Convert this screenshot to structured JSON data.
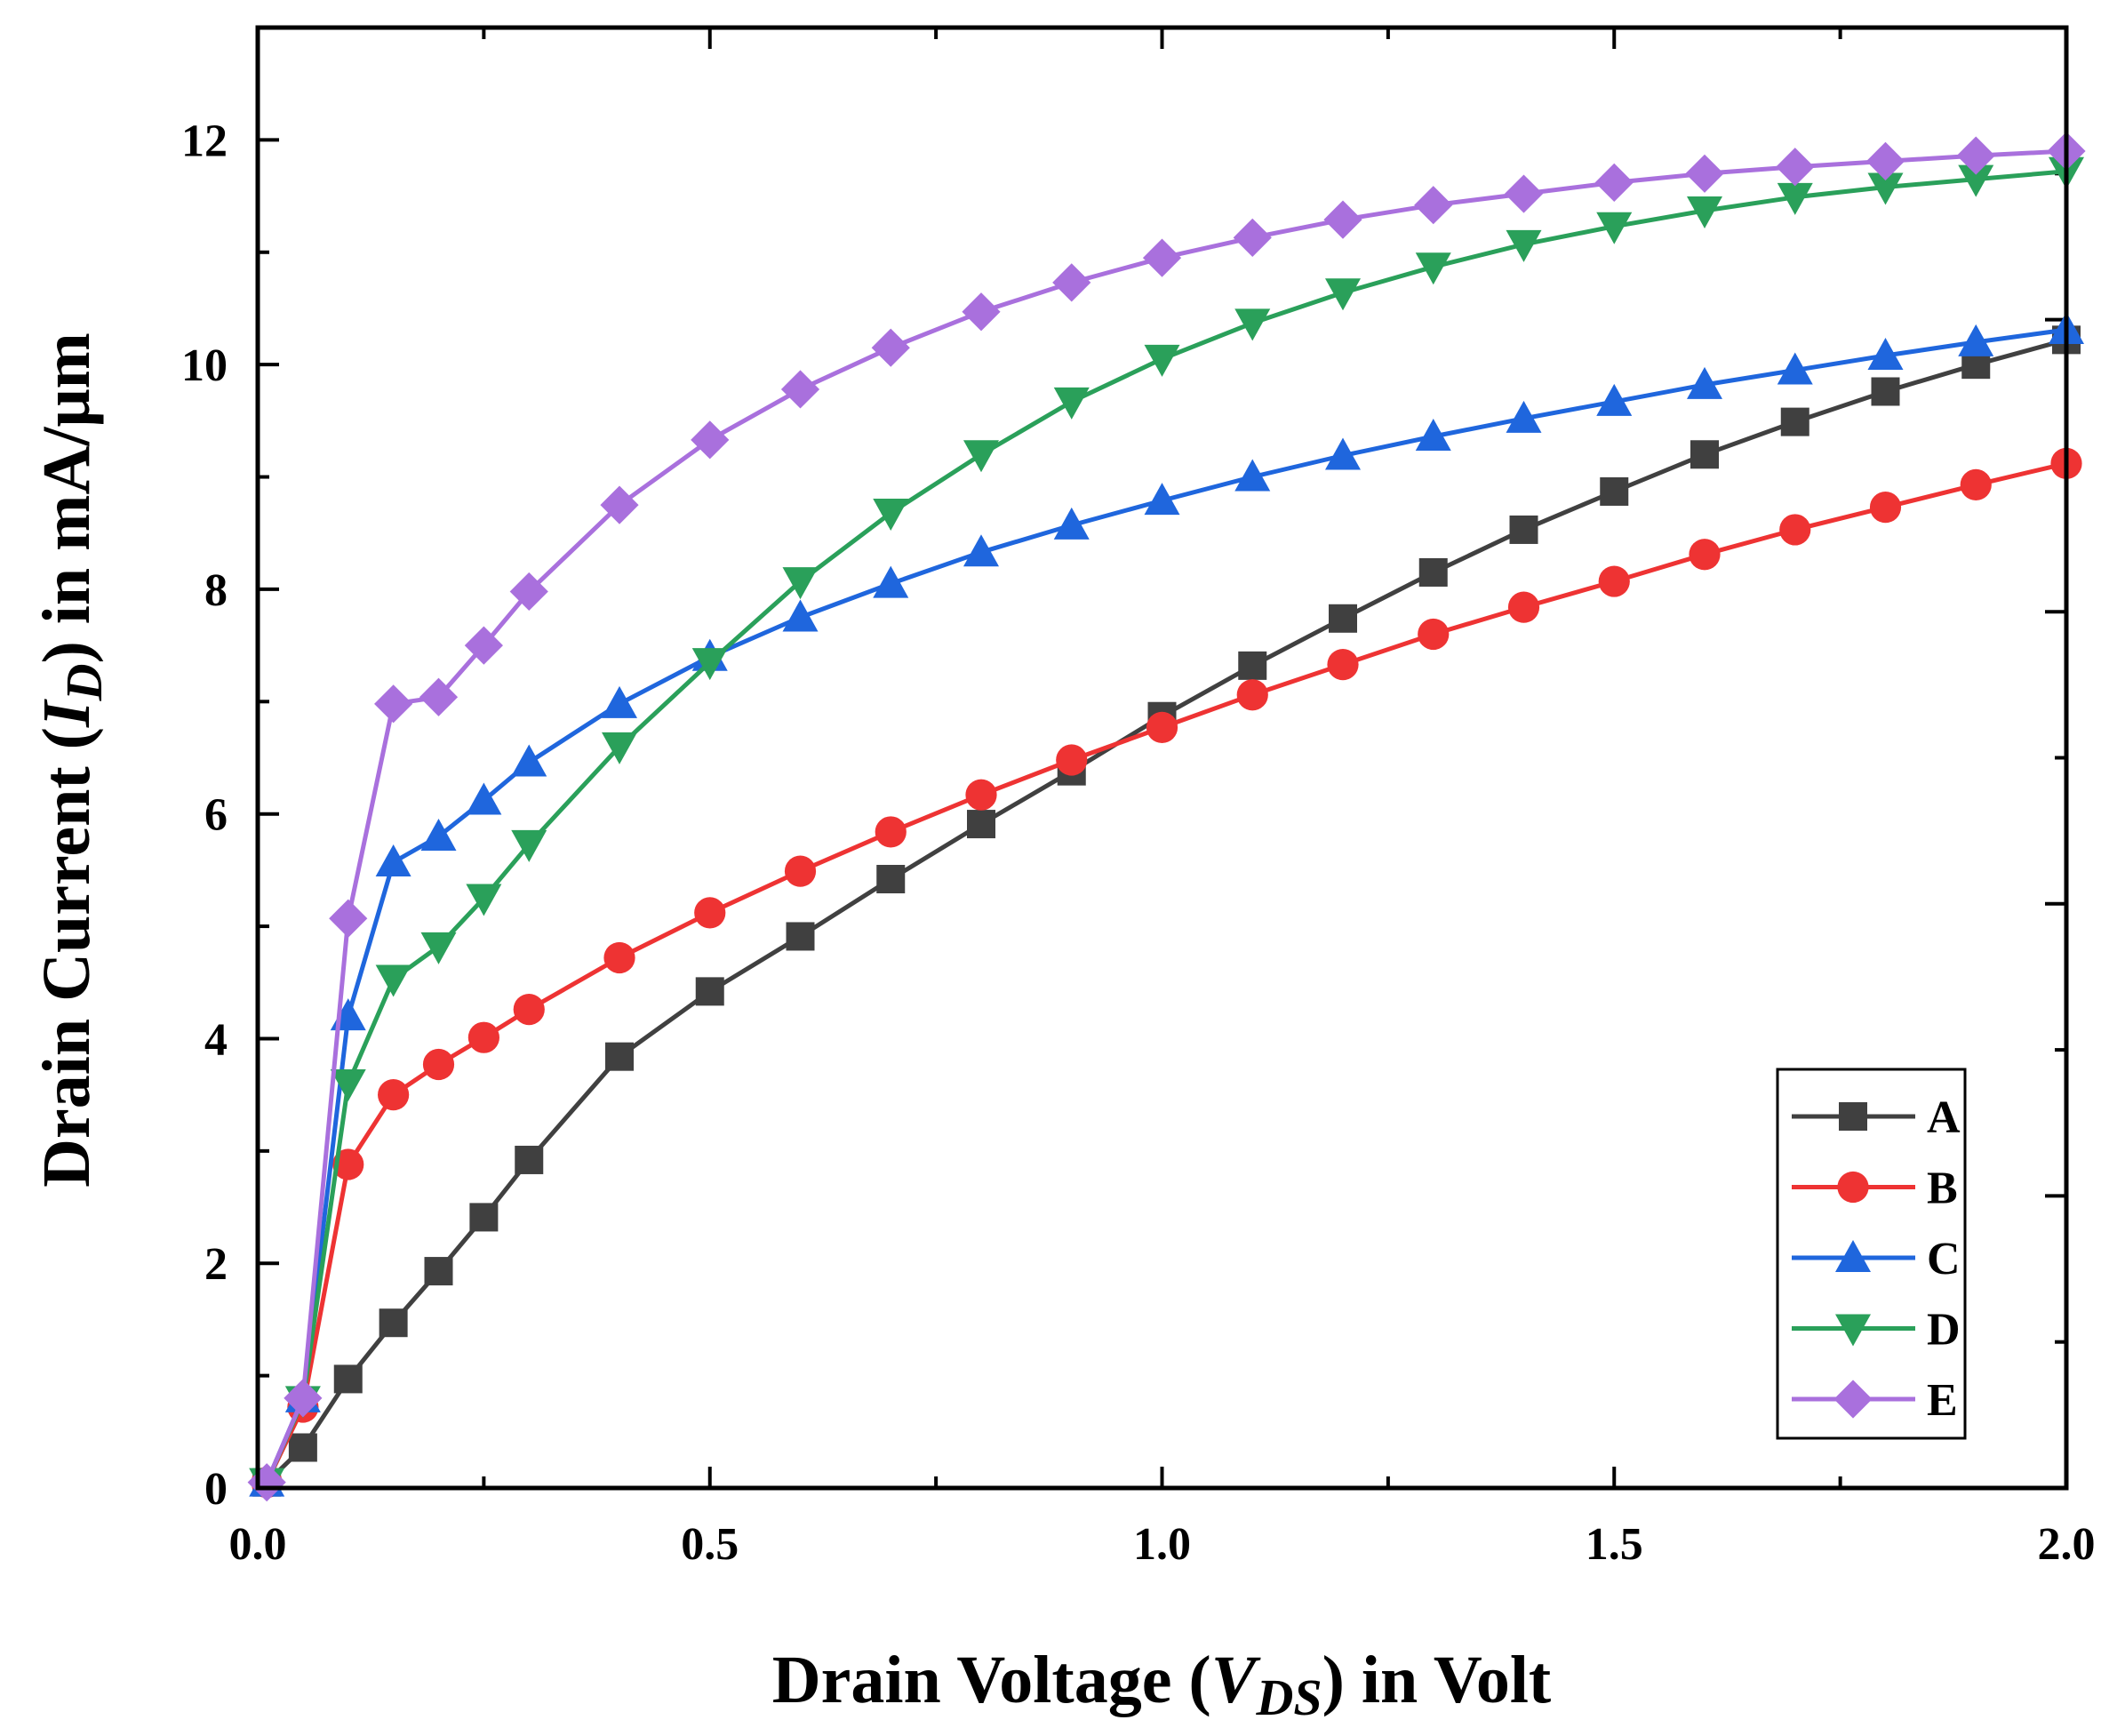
{
  "chart_data": {
    "type": "line",
    "xlabel": {
      "prefix": "Drain Voltage (",
      "var": "V",
      "sub": "DS",
      "suffix": ") in Volt"
    },
    "ylabel": {
      "prefix": "Drain Current (",
      "var": "I",
      "sub": "D",
      "suffix": ") in mA/μm"
    },
    "xlim": [
      0.0,
      2.0
    ],
    "ylim": [
      0,
      13
    ],
    "x_ticks": [
      {
        "value": 0.0,
        "label": "0.0"
      },
      {
        "value": 0.5,
        "label": "0.5"
      },
      {
        "value": 1.0,
        "label": "1.0"
      },
      {
        "value": 1.5,
        "label": "1.5"
      },
      {
        "value": 2.0,
        "label": "2.0"
      }
    ],
    "y_ticks": [
      {
        "value": 0,
        "label": "0"
      },
      {
        "value": 2,
        "label": "2"
      },
      {
        "value": 4,
        "label": "4"
      },
      {
        "value": 6,
        "label": "6"
      },
      {
        "value": 8,
        "label": "8"
      },
      {
        "value": 10,
        "label": "10"
      },
      {
        "value": 12,
        "label": "12"
      }
    ],
    "legend_position": "bottom-right",
    "x": [
      0.01,
      0.05,
      0.1,
      0.15,
      0.2,
      0.25,
      0.3,
      0.4,
      0.5,
      0.6,
      0.7,
      0.8,
      0.9,
      1.0,
      1.1,
      1.2,
      1.3,
      1.4,
      1.5,
      1.6,
      1.7,
      1.8,
      1.9,
      2.0
    ],
    "series": [
      {
        "name": "A",
        "color": "#404040",
        "marker": "square",
        "values": [
          0.05,
          0.36,
          0.97,
          1.47,
          1.93,
          2.41,
          2.92,
          3.84,
          4.42,
          4.91,
          5.42,
          5.91,
          6.38,
          6.87,
          7.32,
          7.74,
          8.15,
          8.53,
          8.87,
          9.2,
          9.49,
          9.76,
          10.0,
          10.22
        ]
      },
      {
        "name": "B",
        "color": "#ee3333",
        "marker": "circle",
        "values": [
          0.05,
          0.72,
          2.88,
          3.5,
          3.77,
          4.01,
          4.26,
          4.72,
          5.12,
          5.49,
          5.84,
          6.17,
          6.48,
          6.77,
          7.06,
          7.33,
          7.6,
          7.84,
          8.07,
          8.31,
          8.53,
          8.73,
          8.93,
          9.12
        ]
      },
      {
        "name": "C",
        "color": "#1f66dd",
        "marker": "triangle-up",
        "values": [
          0.05,
          0.8,
          4.2,
          5.57,
          5.8,
          6.12,
          6.46,
          6.98,
          7.4,
          7.75,
          8.05,
          8.33,
          8.57,
          8.79,
          9.0,
          9.19,
          9.36,
          9.52,
          9.67,
          9.82,
          9.95,
          10.08,
          10.2,
          10.31
        ]
      },
      {
        "name": "D",
        "color": "#2aa05a",
        "marker": "triangle-down",
        "values": [
          0.05,
          0.78,
          3.6,
          4.53,
          4.82,
          5.25,
          5.73,
          6.6,
          7.35,
          8.07,
          8.68,
          9.2,
          9.67,
          10.05,
          10.37,
          10.64,
          10.87,
          11.07,
          11.23,
          11.37,
          11.49,
          11.58,
          11.65,
          11.72
        ]
      },
      {
        "name": "E",
        "color": "#a970dd",
        "marker": "diamond",
        "values": [
          0.05,
          0.8,
          5.07,
          6.98,
          7.04,
          7.5,
          7.98,
          8.75,
          9.33,
          9.78,
          10.15,
          10.47,
          10.73,
          10.95,
          11.13,
          11.29,
          11.42,
          11.52,
          11.62,
          11.7,
          11.76,
          11.81,
          11.86,
          11.9
        ]
      }
    ]
  }
}
